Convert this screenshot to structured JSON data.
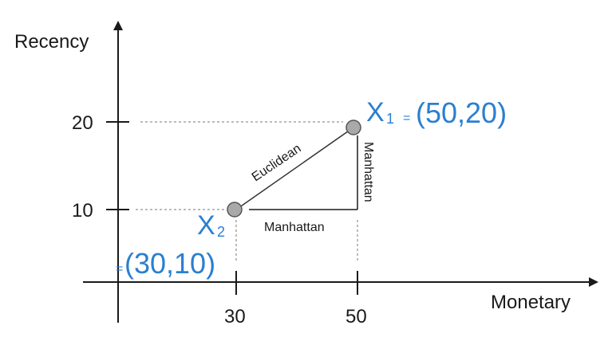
{
  "axes": {
    "y_label": "Recency",
    "x_label": "Monetary",
    "y_ticks": [
      "20",
      "10"
    ],
    "x_ticks": [
      "30",
      "50"
    ]
  },
  "points": {
    "x1": {
      "name": "X",
      "sub": "1",
      "eq": "=",
      "coords": "(50,20)"
    },
    "x2": {
      "name": "X",
      "sub": "2",
      "eq": "=",
      "coords": "(30,10)"
    }
  },
  "distances": {
    "euclidean": "Euclidean",
    "manhattan_horizontal": "Manhattan",
    "manhattan_vertical": "Manhattan"
  },
  "colors": {
    "label_blue": "#2a7fd0",
    "point_fill": "#a9a9a9",
    "ink": "#1a1a1a"
  }
}
